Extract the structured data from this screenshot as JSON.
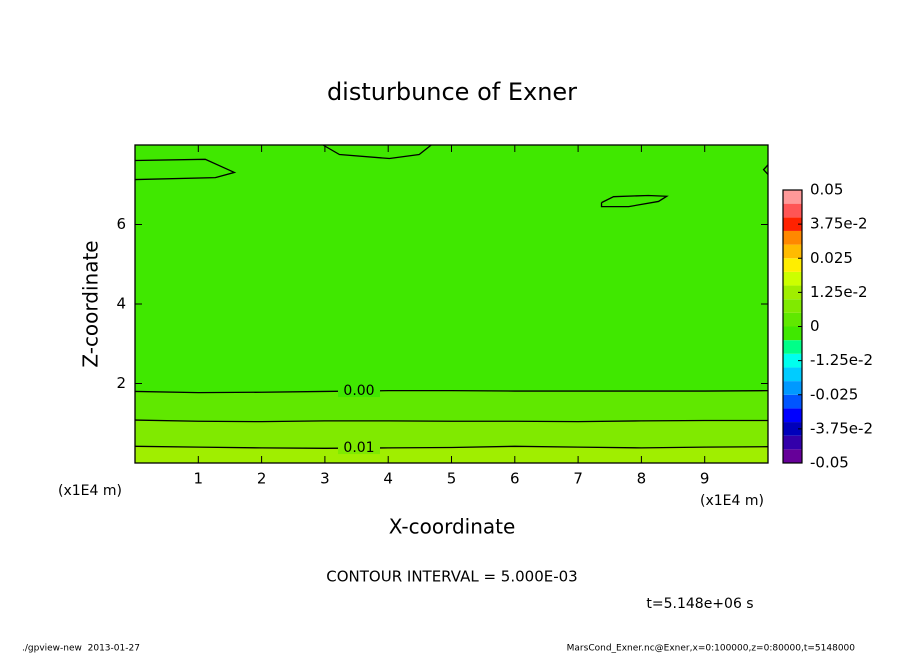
{
  "chart_data": {
    "type": "contour",
    "title": "disturbunce of Exner",
    "x_label": "X-coordinate",
    "y_label": "Z-coordinate",
    "x_unit": "(x1E4 m)",
    "xlim": [
      0,
      10
    ],
    "ylim": [
      0,
      8
    ],
    "xticks": [
      1,
      2,
      3,
      4,
      5,
      6,
      7,
      8,
      9
    ],
    "yticks": [
      2,
      4,
      6
    ],
    "contours": [
      {
        "level": 0,
        "label": "0.00",
        "x": [
          0,
          1,
          2,
          3,
          4,
          5,
          6,
          7,
          8,
          9,
          10
        ],
        "z": [
          1.8,
          1.77,
          1.78,
          1.8,
          1.82,
          1.82,
          1.81,
          1.81,
          1.81,
          1.81,
          1.82
        ]
      },
      {
        "level": 0.005,
        "x": [
          0,
          1,
          2,
          3,
          4,
          5,
          6,
          7,
          8,
          9,
          10
        ],
        "z": [
          1.08,
          1.05,
          1.04,
          1.06,
          1.06,
          1.05,
          1.05,
          1.04,
          1.06,
          1.07,
          1.07
        ]
      },
      {
        "level": 0.01,
        "label": "0.01",
        "x": [
          0,
          1,
          2,
          3,
          4,
          5,
          6,
          7,
          8,
          9,
          10
        ],
        "z": [
          0.42,
          0.4,
          0.38,
          0.37,
          0.38,
          0.39,
          0.42,
          0.4,
          0.38,
          0.4,
          0.41
        ]
      },
      {
        "x": [
          0,
          1.11,
          1.57,
          1.27,
          0
        ],
        "z": [
          7.61,
          7.64,
          7.31,
          7.18,
          7.13
        ]
      },
      {
        "x": [
          2.97,
          3.23,
          4.02,
          4.49,
          4.68
        ],
        "z": [
          8,
          7.76,
          7.66,
          7.76,
          8
        ]
      },
      {
        "x": [
          7.37,
          7.56,
          8.11,
          8.4,
          8.27,
          7.8,
          7.37,
          7.37
        ],
        "z": [
          6.55,
          6.7,
          6.73,
          6.71,
          6.58,
          6.45,
          6.45,
          6.55
        ]
      },
      {
        "x": [
          10,
          9.93,
          10
        ],
        "z": [
          7.5,
          7.38,
          7.26
        ]
      }
    ],
    "colorbar": {
      "levels": [
        -0.05,
        -0.045,
        -0.04,
        -0.035,
        -0.03,
        -0.025,
        -0.02,
        -0.015,
        -0.01,
        -0.005,
        0,
        0.005,
        0.01,
        0.015,
        0.02,
        0.025,
        0.03,
        0.035,
        0.04,
        0.045,
        0.05
      ],
      "colors": [
        "#660099",
        "#3300aa",
        "#0000bb",
        "#0000ff",
        "#0055ff",
        "#0099ff",
        "#00ccff",
        "#00ffee",
        "#00ff88",
        "#40e800",
        "#60e800",
        "#80ea00",
        "#a0ee00",
        "#ccff00",
        "#ffee00",
        "#ffbb00",
        "#ff8800",
        "#ff2200",
        "#ff5555",
        "#ff9999"
      ],
      "ticks": [
        -0.05,
        {
          "value": -0.0375,
          "label": "-3.75e-2"
        },
        -0.025,
        {
          "value": -0.0125,
          "label": "-1.25e-2"
        },
        0,
        {
          "value": 0.0125,
          "label": "1.25e-2"
        },
        0.025,
        {
          "value": 0.0375,
          "label": "3.75e-2"
        },
        0.05
      ]
    },
    "contour_interval_text": "CONTOUR INTERVAL = 5.000E-03",
    "time_text": "t=5.148e+06 s",
    "footer_left": "./gpview-new  2013-01-27",
    "footer_right": "MarsCond_Exner.nc@Exner,x=0:100000,z=0:80000,t=5148000"
  }
}
